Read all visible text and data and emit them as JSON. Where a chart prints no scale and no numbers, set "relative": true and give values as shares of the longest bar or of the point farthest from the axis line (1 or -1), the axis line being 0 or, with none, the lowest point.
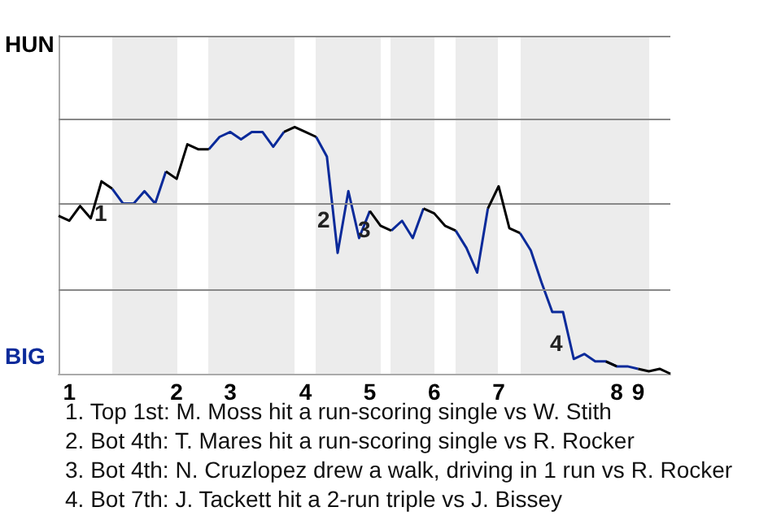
{
  "chart_data": {
    "type": "line",
    "relative": true,
    "categories": [
      null,
      "1",
      null,
      null,
      null,
      null,
      null,
      null,
      null,
      null,
      null,
      "2",
      null,
      null,
      null,
      null,
      "3",
      null,
      null,
      null,
      null,
      null,
      null,
      "4",
      null,
      null,
      null,
      null,
      null,
      "5",
      null,
      null,
      null,
      null,
      null,
      "6",
      null,
      null,
      null,
      null,
      null,
      "7",
      null,
      null,
      null,
      null,
      null,
      null,
      null,
      null,
      null,
      null,
      "8",
      null,
      "9",
      null,
      null,
      null
    ],
    "series": [
      {
        "color": "#000000",
        "values": [
          0.64,
          0.62,
          0.68,
          0.63,
          0.78,
          0.75,
          null,
          null,
          null,
          null,
          0.82,
          0.79,
          0.93,
          0.91,
          0.91,
          null,
          null,
          null,
          null,
          null,
          null,
          0.98,
          1,
          0.98,
          0.96,
          null,
          null,
          null,
          null,
          0.66,
          0.6,
          0.58,
          null,
          null,
          0.67,
          0.65,
          0.6,
          0.58,
          null,
          null,
          0.67,
          0.76,
          0.59,
          0.57,
          null,
          null,
          null,
          null,
          null,
          null,
          null,
          0.05,
          0.03,
          null,
          0.02,
          0.01,
          0.02,
          0
        ]
      },
      {
        "color": "#0a2a9a",
        "values": [
          null,
          null,
          null,
          null,
          null,
          0.75,
          0.69,
          0.69,
          0.74,
          0.69,
          0.82,
          null,
          null,
          null,
          0.91,
          0.96,
          0.98,
          0.95,
          0.98,
          0.98,
          0.92,
          0.98,
          null,
          null,
          0.96,
          0.88,
          0.49,
          0.74,
          0.55,
          0.66,
          null,
          0.58,
          0.62,
          0.55,
          0.67,
          null,
          null,
          0.58,
          0.51,
          0.41,
          0.67,
          null,
          null,
          0.57,
          0.5,
          0.37,
          0.25,
          0.25,
          0.06,
          0.08,
          0.05,
          0.05,
          0.03,
          0.03,
          0.02,
          null,
          null,
          null
        ]
      }
    ],
    "ref_lines": [
      {
        "axis": "y",
        "value": 0.34,
        "color": "#888888"
      },
      {
        "axis": "y",
        "value": 0.69,
        "color": "#888888"
      },
      {
        "axis": "y",
        "value": 1.03,
        "color": "#888888"
      },
      {
        "axis": "y",
        "value": 1.37,
        "color": "#888888"
      }
    ],
    "annotations": [
      "HUN",
      "BIG",
      "1",
      "2",
      "3",
      "4",
      "1. Top 1st: M. Moss hit a run-scoring single vs W. Stith",
      "2. Bot 4th: T. Mares hit a run-scoring single vs R. Rocker",
      "3. Bot 4th: N. Cruzlopez drew a walk, driving in 1 run vs R. Rocker",
      "4. Bot 7th: J. Tackett hit a 2-run triple vs J. Bissey"
    ]
  }
}
